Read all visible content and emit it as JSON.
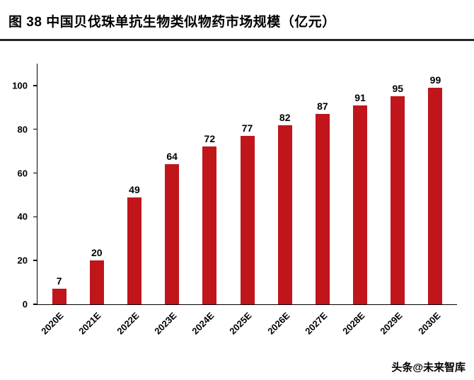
{
  "page": {
    "title": "图 38 中国贝伐珠单抗生物类似物药市场规模（亿元）",
    "watermark": "头条@未来智库"
  },
  "colors": {
    "bar": "#c0151b",
    "axis": "#000000",
    "divider": "#262626",
    "text": "#000000"
  },
  "chart_data": {
    "type": "bar",
    "title": "中国贝伐珠单抗生物类似物药市场规模（亿元）",
    "categories": [
      "2020E",
      "2021E",
      "2022E",
      "2023E",
      "2024E",
      "2025E",
      "2026E",
      "2027E",
      "2028E",
      "2029E",
      "2030E"
    ],
    "values": [
      7,
      20,
      49,
      64,
      72,
      77,
      82,
      87,
      91,
      95,
      99
    ],
    "xlabel": "",
    "ylabel": "",
    "ylim": [
      0,
      100
    ],
    "yticks": [
      0,
      20,
      40,
      60,
      80,
      100
    ],
    "grid": false,
    "legend": false,
    "data_labels": true
  }
}
